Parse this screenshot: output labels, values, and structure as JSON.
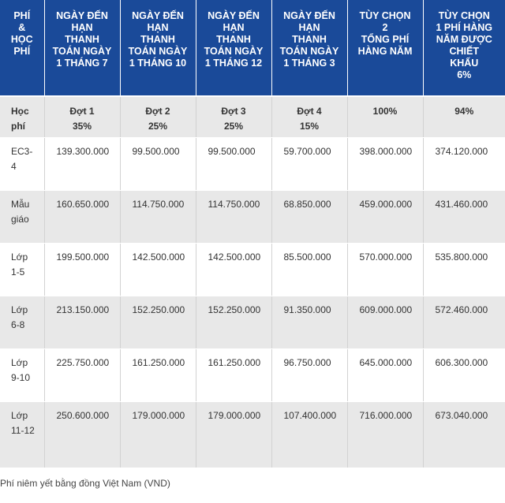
{
  "table": {
    "headers": [
      "PHÍ\n&\nHỌC\nPHÍ",
      "NGÀY ĐẾN\nHẠN\nTHANH\nTOÁN NGÀY\n1 THÁNG 7",
      "NGÀY ĐẾN\nHẠN\nTHANH\nTOÁN NGÀY\n1 THÁNG 10",
      "NGÀY ĐẾN\nHẠN\nTHANH\nTOÁN NGÀY\n1 THÁNG 12",
      "NGÀY ĐẾN\nHẠN\nTHANH\nTOÁN NGÀY\n1 THÁNG 3",
      "TÙY CHỌN\n2\nTỔNG PHÍ\nHÀNG NĂM",
      "TÙY CHỌN\n1 PHÍ HÀNG\nNĂM ĐƯỢC\nCHIẾT\nKHẤU\n6%"
    ],
    "subheader": {
      "label": "Học phí",
      "cols": [
        {
          "a": "Đợt 1",
          "b": "35%"
        },
        {
          "a": "Đợt 2",
          "b": "25%"
        },
        {
          "a": "Đợt 3",
          "b": "25%"
        },
        {
          "a": "Đợt 4",
          "b": "15%"
        },
        {
          "a": "100%",
          "b": ""
        },
        {
          "a": "94%",
          "b": ""
        }
      ]
    },
    "rows": [
      {
        "level": "EC3-4",
        "values": [
          "139.300.000",
          "99.500.000",
          "99.500.000",
          "59.700.000",
          "398.000.000",
          "374.120.000"
        ]
      },
      {
        "level": "Mẫu giáo",
        "values": [
          "160.650.000",
          "114.750.000",
          "114.750.000",
          "68.850.000",
          "459.000.000",
          "431.460.000"
        ]
      },
      {
        "level": "Lớp 1-5",
        "values": [
          "199.500.000",
          "142.500.000",
          "142.500.000",
          "85.500.000",
          "570.000.000",
          "535.800.000"
        ]
      },
      {
        "level": "Lớp 6-8",
        "values": [
          "213.150.000",
          "152.250.000",
          "152.250.000",
          "91.350.000",
          "609.000.000",
          "572.460.000"
        ]
      },
      {
        "level": "Lớp 9-10",
        "values": [
          "225.750.000",
          "161.250.000",
          "161.250.000",
          "96.750.000",
          "645.000.000",
          "606.300.000"
        ]
      },
      {
        "level": "Lớp 11-12",
        "values": [
          "250.600.000",
          "179.000.000",
          "179.000.000",
          "107.400.000",
          "716.000.000",
          "673.040.000"
        ]
      }
    ]
  },
  "note": "Phí niêm yết bằng đồng Việt Nam (VND)"
}
